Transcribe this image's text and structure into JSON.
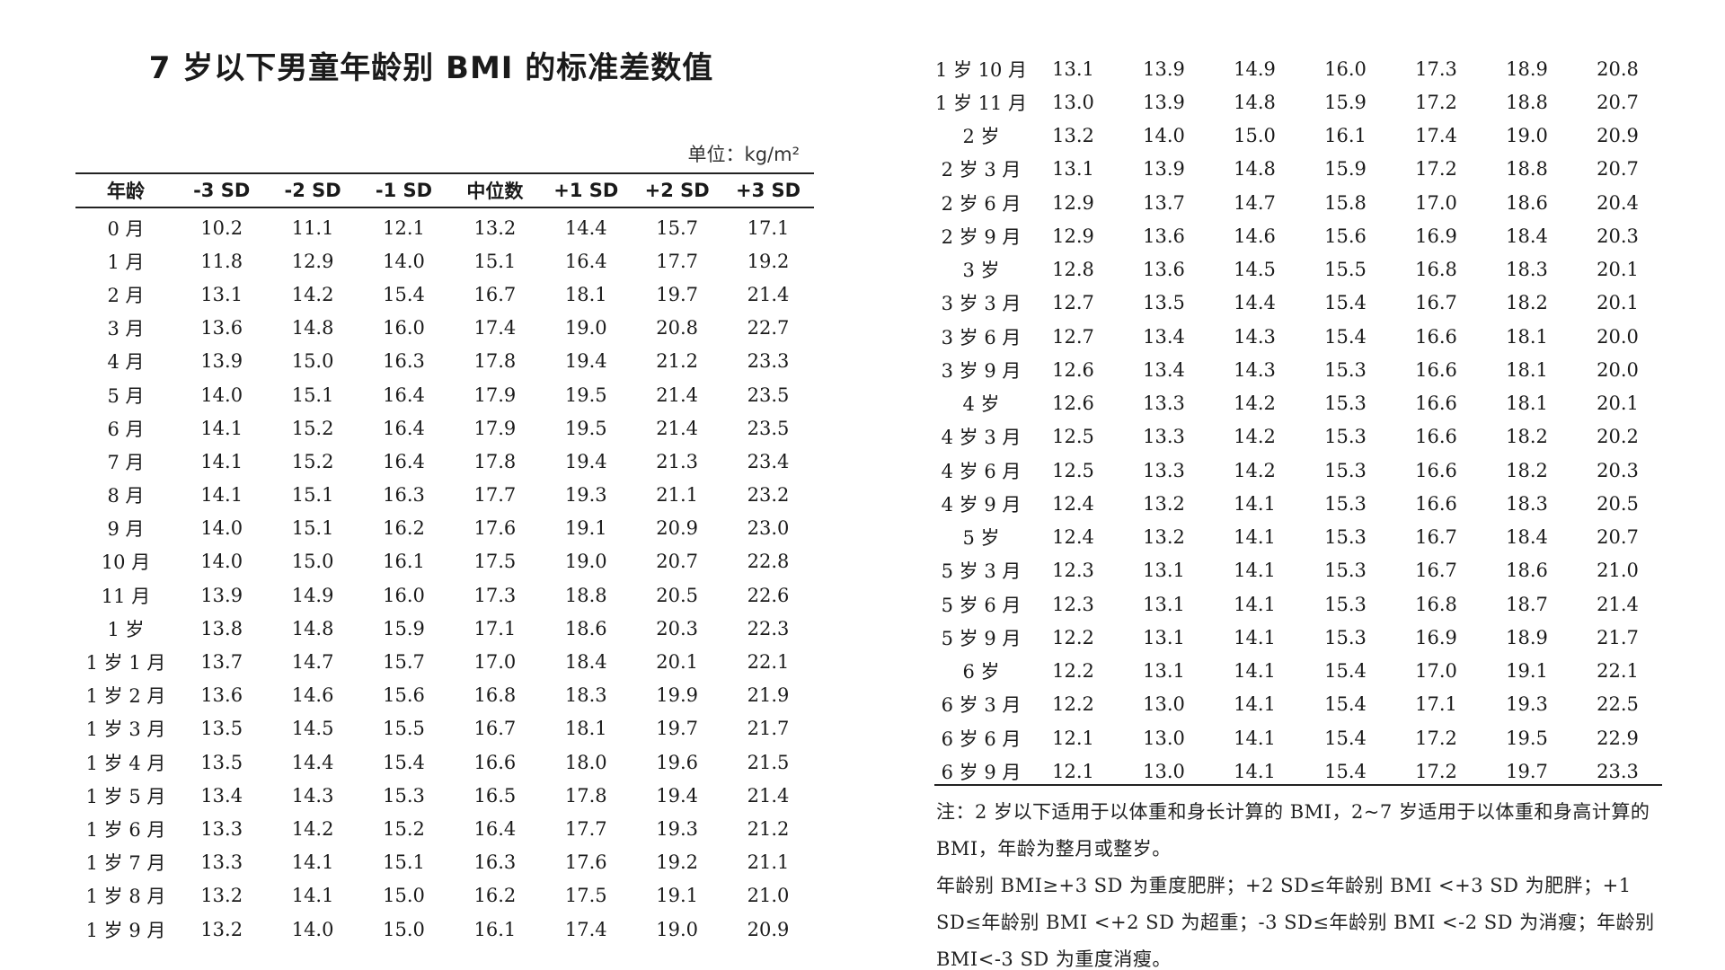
{
  "title": "7 岁以下男童年龄别 BMI 的标准差数值",
  "unit": "单位：kg/m²",
  "headers": [
    "年龄",
    "-3 SD",
    "-2 SD",
    "-1 SD",
    "中位数",
    "+1 SD",
    "+2 SD",
    "+3 SD"
  ],
  "left_rows": [
    [
      "0 月",
      "10.2",
      "11.1",
      "12.1",
      "13.2",
      "14.4",
      "15.7",
      "17.1"
    ],
    [
      "1 月",
      "11.8",
      "12.9",
      "14.0",
      "15.1",
      "16.4",
      "17.7",
      "19.2"
    ],
    [
      "2 月",
      "13.1",
      "14.2",
      "15.4",
      "16.7",
      "18.1",
      "19.7",
      "21.4"
    ],
    [
      "3 月",
      "13.6",
      "14.8",
      "16.0",
      "17.4",
      "19.0",
      "20.8",
      "22.7"
    ],
    [
      "4 月",
      "13.9",
      "15.0",
      "16.3",
      "17.8",
      "19.4",
      "21.2",
      "23.3"
    ],
    [
      "5 月",
      "14.0",
      "15.1",
      "16.4",
      "17.9",
      "19.5",
      "21.4",
      "23.5"
    ],
    [
      "6 月",
      "14.1",
      "15.2",
      "16.4",
      "17.9",
      "19.5",
      "21.4",
      "23.5"
    ],
    [
      "7 月",
      "14.1",
      "15.2",
      "16.4",
      "17.8",
      "19.4",
      "21.3",
      "23.4"
    ],
    [
      "8 月",
      "14.1",
      "15.1",
      "16.3",
      "17.7",
      "19.3",
      "21.1",
      "23.2"
    ],
    [
      "9 月",
      "14.0",
      "15.1",
      "16.2",
      "17.6",
      "19.1",
      "20.9",
      "23.0"
    ],
    [
      "10 月",
      "14.0",
      "15.0",
      "16.1",
      "17.5",
      "19.0",
      "20.7",
      "22.8"
    ],
    [
      "11 月",
      "13.9",
      "14.9",
      "16.0",
      "17.3",
      "18.8",
      "20.5",
      "22.6"
    ],
    [
      "1 岁",
      "13.8",
      "14.8",
      "15.9",
      "17.1",
      "18.6",
      "20.3",
      "22.3"
    ],
    [
      "1 岁 1 月",
      "13.7",
      "14.7",
      "15.7",
      "17.0",
      "18.4",
      "20.1",
      "22.1"
    ],
    [
      "1 岁 2 月",
      "13.6",
      "14.6",
      "15.6",
      "16.8",
      "18.3",
      "19.9",
      "21.9"
    ],
    [
      "1 岁 3 月",
      "13.5",
      "14.5",
      "15.5",
      "16.7",
      "18.1",
      "19.7",
      "21.7"
    ],
    [
      "1 岁 4 月",
      "13.5",
      "14.4",
      "15.4",
      "16.6",
      "18.0",
      "19.6",
      "21.5"
    ],
    [
      "1 岁 5 月",
      "13.4",
      "14.3",
      "15.3",
      "16.5",
      "17.8",
      "19.4",
      "21.4"
    ],
    [
      "1 岁 6 月",
      "13.3",
      "14.2",
      "15.2",
      "16.4",
      "17.7",
      "19.3",
      "21.2"
    ],
    [
      "1 岁 7 月",
      "13.3",
      "14.1",
      "15.1",
      "16.3",
      "17.6",
      "19.2",
      "21.1"
    ],
    [
      "1 岁 8 月",
      "13.2",
      "14.1",
      "15.0",
      "16.2",
      "17.5",
      "19.1",
      "21.0"
    ],
    [
      "1 岁 9 月",
      "13.2",
      "14.0",
      "15.0",
      "16.1",
      "17.4",
      "19.0",
      "20.9"
    ]
  ],
  "right_rows": [
    [
      "1 岁 10 月",
      "13.1",
      "13.9",
      "14.9",
      "16.0",
      "17.3",
      "18.9",
      "20.8"
    ],
    [
      "1 岁 11 月",
      "13.0",
      "13.9",
      "14.8",
      "15.9",
      "17.2",
      "18.8",
      "20.7"
    ],
    [
      "2 岁",
      "13.2",
      "14.0",
      "15.0",
      "16.1",
      "17.4",
      "19.0",
      "20.9"
    ],
    [
      "2 岁 3 月",
      "13.1",
      "13.9",
      "14.8",
      "15.9",
      "17.2",
      "18.8",
      "20.7"
    ],
    [
      "2 岁 6 月",
      "12.9",
      "13.7",
      "14.7",
      "15.8",
      "17.0",
      "18.6",
      "20.4"
    ],
    [
      "2 岁 9 月",
      "12.9",
      "13.6",
      "14.6",
      "15.6",
      "16.9",
      "18.4",
      "20.3"
    ],
    [
      "3 岁",
      "12.8",
      "13.6",
      "14.5",
      "15.5",
      "16.8",
      "18.3",
      "20.1"
    ],
    [
      "3 岁 3 月",
      "12.7",
      "13.5",
      "14.4",
      "15.4",
      "16.7",
      "18.2",
      "20.1"
    ],
    [
      "3 岁 6 月",
      "12.7",
      "13.4",
      "14.3",
      "15.4",
      "16.6",
      "18.1",
      "20.0"
    ],
    [
      "3 岁 9 月",
      "12.6",
      "13.4",
      "14.3",
      "15.3",
      "16.6",
      "18.1",
      "20.0"
    ],
    [
      "4 岁",
      "12.6",
      "13.3",
      "14.2",
      "15.3",
      "16.6",
      "18.1",
      "20.1"
    ],
    [
      "4 岁 3 月",
      "12.5",
      "13.3",
      "14.2",
      "15.3",
      "16.6",
      "18.2",
      "20.2"
    ],
    [
      "4 岁 6 月",
      "12.5",
      "13.3",
      "14.2",
      "15.3",
      "16.6",
      "18.2",
      "20.3"
    ],
    [
      "4 岁 9 月",
      "12.4",
      "13.2",
      "14.1",
      "15.3",
      "16.6",
      "18.3",
      "20.5"
    ],
    [
      "5 岁",
      "12.4",
      "13.2",
      "14.1",
      "15.3",
      "16.7",
      "18.4",
      "20.7"
    ],
    [
      "5 岁 3 月",
      "12.3",
      "13.1",
      "14.1",
      "15.3",
      "16.7",
      "18.6",
      "21.0"
    ],
    [
      "5 岁 6 月",
      "12.3",
      "13.1",
      "14.1",
      "15.3",
      "16.8",
      "18.7",
      "21.4"
    ],
    [
      "5 岁 9 月",
      "12.2",
      "13.1",
      "14.1",
      "15.3",
      "16.9",
      "18.9",
      "21.7"
    ],
    [
      "6 岁",
      "12.2",
      "13.1",
      "14.1",
      "15.4",
      "17.0",
      "19.1",
      "22.1"
    ],
    [
      "6 岁 3 月",
      "12.2",
      "13.0",
      "14.1",
      "15.4",
      "17.1",
      "19.3",
      "22.5"
    ],
    [
      "6 岁 6 月",
      "12.1",
      "13.0",
      "14.1",
      "15.4",
      "17.2",
      "19.5",
      "22.9"
    ],
    [
      "6 岁 9 月",
      "12.1",
      "13.0",
      "14.1",
      "15.4",
      "17.2",
      "19.7",
      "23.3"
    ]
  ],
  "notes": [
    "注：2 岁以下适用于以体重和身长计算的 BMI，2~7 岁适用于以体重和身高计算的 BMI，年龄为整月或整岁。",
    "年龄别 BMI≥+3 SD 为重度肥胖；+2 SD≤年龄别 BMI <+3 SD 为肥胖；+1 SD≤年龄别 BMI <+2 SD 为超重；-3 SD≤年龄别 BMI <-2 SD 为消瘦；年龄别 BMI<-3 SD 为重度消瘦。"
  ]
}
